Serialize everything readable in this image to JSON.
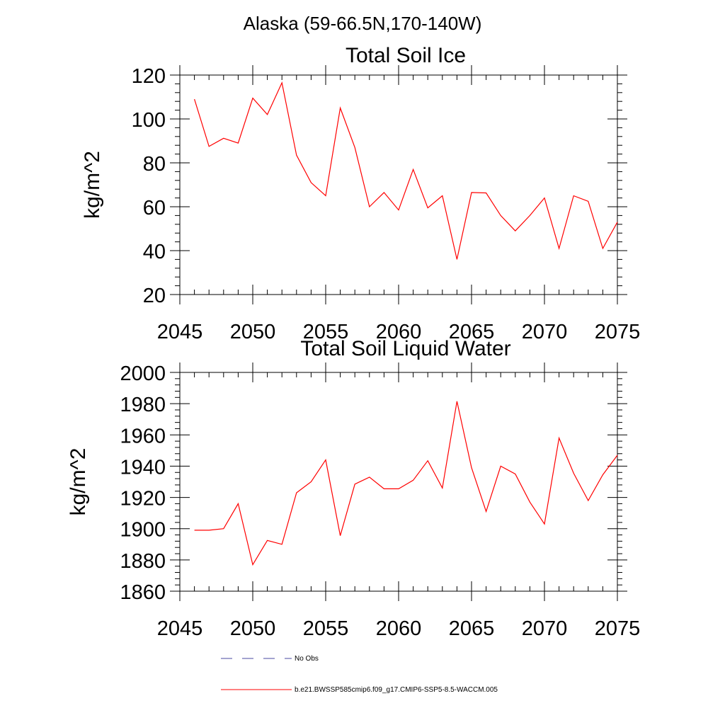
{
  "page_title": "Alaska (59-66.5N,170-140W)",
  "colors": {
    "series": "#ff0000",
    "obs": "#4a4aa0",
    "axis": "#000000"
  },
  "legend": [
    {
      "label": "No Obs",
      "style": "dashed",
      "color": "#4a4aa0"
    },
    {
      "label": "b.e21.BWSSP585cmip6.f09_g17.CMIP6-SSP5-8.5-WACCM.005",
      "style": "solid",
      "color": "#ff0000"
    }
  ],
  "chart_data": [
    {
      "type": "line",
      "title": "Total Soil Ice",
      "ylabel": "kg/m^2",
      "xlabel": "",
      "xlim": [
        2045,
        2075
      ],
      "ylim": [
        20,
        120
      ],
      "xticks": [
        2045,
        2050,
        2055,
        2060,
        2065,
        2070,
        2075
      ],
      "yticks": [
        20,
        40,
        60,
        80,
        100,
        120
      ],
      "x": [
        2046,
        2047,
        2048,
        2049,
        2050,
        2051,
        2052,
        2053,
        2054,
        2055,
        2056,
        2057,
        2058,
        2059,
        2060,
        2061,
        2062,
        2063,
        2064,
        2065,
        2066,
        2067,
        2068,
        2069,
        2070,
        2071,
        2072,
        2073,
        2074,
        2075
      ],
      "series": [
        {
          "values": [
            109,
            87.5,
            91.2,
            89,
            109.5,
            102,
            116.5,
            83.5,
            71,
            65,
            105,
            87,
            60,
            66.5,
            58.5,
            77,
            59.5,
            65,
            36,
            66.5,
            66.3,
            56,
            49,
            56,
            64,
            41,
            65,
            62.5,
            41,
            53
          ]
        }
      ]
    },
    {
      "type": "line",
      "title": "Total Soil Liquid Water",
      "ylabel": "kg/m^2",
      "xlabel": "",
      "xlim": [
        2045,
        2075
      ],
      "ylim": [
        1860,
        2000
      ],
      "xticks": [
        2045,
        2050,
        2055,
        2060,
        2065,
        2070,
        2075
      ],
      "yticks": [
        1860,
        1880,
        1900,
        1920,
        1940,
        1960,
        1980,
        2000
      ],
      "x": [
        2046,
        2047,
        2048,
        2049,
        2050,
        2051,
        2052,
        2053,
        2054,
        2055,
        2056,
        2057,
        2058,
        2059,
        2060,
        2061,
        2062,
        2063,
        2064,
        2065,
        2066,
        2067,
        2068,
        2069,
        2070,
        2071,
        2072,
        2073,
        2074,
        2075
      ],
      "series": [
        {
          "values": [
            1899,
            1899,
            1900,
            1916,
            1877,
            1892.5,
            1890,
            1923,
            1930,
            1944,
            1895.5,
            1928.5,
            1933,
            1925.5,
            1925.5,
            1931,
            1943.5,
            1926,
            1981.5,
            1939,
            1911,
            1940,
            1935,
            1917,
            1903,
            1958,
            1935.5,
            1918,
            1934.5,
            1947
          ]
        }
      ]
    }
  ]
}
